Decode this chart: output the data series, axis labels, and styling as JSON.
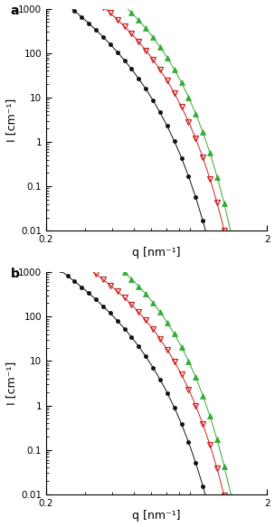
{
  "fig_width": 3.04,
  "fig_height": 5.83,
  "dpi": 100,
  "panels": [
    "a",
    "b"
  ],
  "q_min": 0.2,
  "q_max": 2.0,
  "ylim": [
    0.01,
    1000
  ],
  "xlabel": "q [nm⁻¹]",
  "ylabel": "I [cm⁻¹]",
  "series": {
    "green": {
      "color": "#33aa33",
      "marker": "^",
      "markersize": 3.8,
      "fillstyle": "full",
      "linewidth": 0.7,
      "a_I0": 480,
      "a_Rg": 4.0,
      "a_power": 2.5,
      "b_I0": 480,
      "b_Rg": 4.0,
      "b_power": 2.3
    },
    "red": {
      "color": "#cc2222",
      "marker": "v",
      "markersize": 3.8,
      "fillstyle": "none",
      "linewidth": 0.7,
      "a_I0": 130,
      "a_Rg": 4.0,
      "a_power": 2.8,
      "b_I0": 110,
      "b_Rg": 4.0,
      "b_power": 2.5
    },
    "black": {
      "color": "#111111",
      "marker": "o",
      "markersize": 3.0,
      "fillstyle": "full",
      "linewidth": 0.7,
      "a_I0": 22,
      "a_Rg": 4.5,
      "a_power": 3.2,
      "b_I0": 20,
      "b_Rg": 4.5,
      "b_power": 3.0
    }
  },
  "n_points": 32,
  "panel_label_fontsize": 10,
  "axis_label_fontsize": 9,
  "tick_fontsize": 7.5
}
